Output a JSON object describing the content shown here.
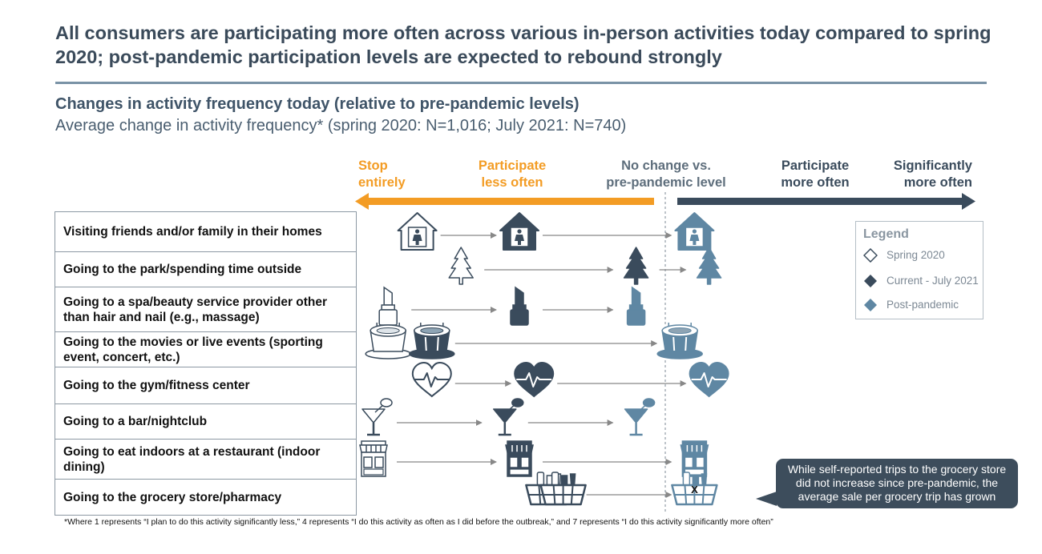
{
  "title": "All consumers are participating more often across various in-person activities today compared to spring 2020; post-pandemic participation levels are expected to rebound strongly",
  "subtitle": "Changes in activity frequency today (relative to pre-pandemic levels)",
  "subtitle2": "Average change in activity frequency* (spring 2020: N=1,016; July 2021: N=740)",
  "scale_headers": [
    {
      "label": "Stop\nentirely",
      "style": "orange"
    },
    {
      "label": "Participate\nless often",
      "style": "orange"
    },
    {
      "label": "No change vs.\npre-pandemic level",
      "style": "grey"
    },
    {
      "label": "Participate\nmore often",
      "style": "dark"
    },
    {
      "label": "Significantly\nmore often",
      "style": "dark"
    }
  ],
  "colors": {
    "spring_2020": "#ffffff",
    "current": "#3a4b5c",
    "post_pandemic": "#5f87a3",
    "stroke": "#3a4b5c",
    "orange": "#f39c24",
    "arrow": "#888888"
  },
  "legend": {
    "title": "Legend",
    "items": [
      "Spring 2020",
      "Current - July 2021",
      "Post-pandemic"
    ]
  },
  "chart_data": {
    "type": "scatter",
    "scale": [
      1,
      7
    ],
    "categories": [
      "Visiting friends and/or family in their homes",
      "Going to the park/spending time outside",
      "Going to a spa/beauty service provider other than hair and nail (e.g., massage)",
      "Going to the movies or live events (sporting event, concert, etc.)",
      "Going to the gym/fitness center",
      "Going to a bar/nightclub",
      "Going to eat indoors at a restaurant (indoor dining)",
      "Going to the grocery store/pharmacy"
    ],
    "icons": [
      "house-icon",
      "tree-icon",
      "lipstick-icon",
      "stadium-icon",
      "heartbeat-icon",
      "cocktail-icon",
      "storefront-icon",
      "grocery-basket-icon"
    ],
    "series": [
      {
        "name": "Spring 2020",
        "values": [
          2.3,
          2.6,
          2.1,
          2.1,
          2.4,
          2.0,
          2.0,
          3.2
        ]
      },
      {
        "name": "Current - July 2021",
        "values": [
          3.0,
          3.8,
          3.0,
          2.4,
          3.1,
          2.9,
          3.0,
          3.3
        ]
      },
      {
        "name": "Post-pandemic",
        "values": [
          4.2,
          4.3,
          3.8,
          4.1,
          4.3,
          3.8,
          4.2,
          4.2
        ]
      }
    ]
  },
  "callout": "While self-reported trips to the grocery store did not increase since pre-pandemic, the average sale per grocery trip has grown",
  "callout_mark": "X",
  "footnote": "*Where 1 represents “I plan to do this activity significantly less,” 4 represents “I do this activity as often as I did before the outbreak,” and 7 represents “I do this activity significantly more often”"
}
